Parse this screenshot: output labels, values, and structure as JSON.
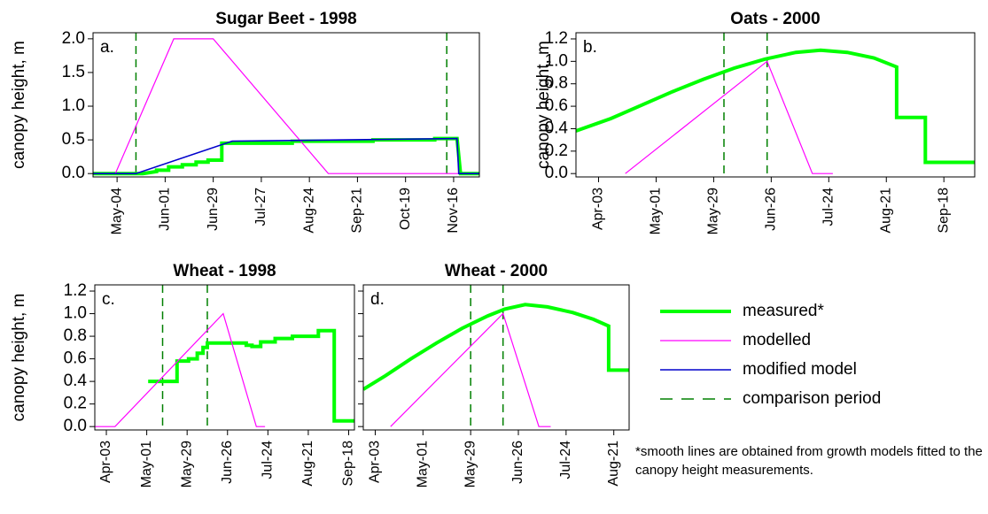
{
  "chart_data": [
    {
      "type": "line",
      "title": "Sugar Beet - 1998",
      "panel_label": "a.",
      "ylabel": "canopy height, m",
      "xlim": [
        110,
        335
      ],
      "ylim": [
        -0.05,
        2.09
      ],
      "xticks": [
        {
          "value": 124,
          "label": "May-04"
        },
        {
          "value": 152,
          "label": "Jun-01"
        },
        {
          "value": 180,
          "label": "Jun-29"
        },
        {
          "value": 208,
          "label": "Jul-27"
        },
        {
          "value": 236,
          "label": "Aug-24"
        },
        {
          "value": 264,
          "label": "Sep-21"
        },
        {
          "value": 292,
          "label": "Oct-19"
        },
        {
          "value": 320,
          "label": "Nov-16"
        }
      ],
      "yticks": [
        {
          "value": 0,
          "label": "0.0"
        },
        0.5,
        {
          "value": 1,
          "label": "1.0"
        },
        1.5,
        {
          "value": 2,
          "label": "2.0"
        }
      ],
      "ytick_labels": true,
      "series": [
        {
          "name": "measured*",
          "color": "#00ff00",
          "linewidth": 4,
          "x": [
            110,
            139,
            147,
            147,
            154,
            154,
            162,
            162,
            170,
            170,
            177,
            177,
            185,
            185,
            226,
            226,
            273,
            273,
            309,
            309,
            322,
            324,
            335
          ],
          "values": [
            0,
            0,
            0.03,
            0.05,
            0.05,
            0.1,
            0.1,
            0.13,
            0.13,
            0.17,
            0.17,
            0.2,
            0.2,
            0.45,
            0.45,
            0.48,
            0.48,
            0.5,
            0.5,
            0.52,
            0.52,
            0,
            0
          ]
        },
        {
          "name": "modelled",
          "color": "#ff00ff",
          "linewidth": 1.2,
          "x": [
            110,
            123,
            157,
            180,
            247,
            335
          ],
          "values": [
            0,
            0,
            2.0,
            2.0,
            0,
            0
          ]
        },
        {
          "name": "modified model",
          "color": "#0000cc",
          "linewidth": 1.6,
          "x": [
            110,
            135,
            191,
            322,
            323,
            335
          ],
          "values": [
            0,
            0,
            0.48,
            0.52,
            0,
            0
          ]
        }
      ],
      "comparison": {
        "name": "comparison period",
        "color": "#008000",
        "x": [
          135,
          316
        ]
      }
    },
    {
      "type": "line",
      "title": "Oats - 2000",
      "panel_label": "b.",
      "ylabel": "canopy height, m",
      "xlim": [
        83,
        277
      ],
      "ylim": [
        -0.03,
        1.255
      ],
      "xticks": [
        {
          "value": 94,
          "label": "Apr-03"
        },
        {
          "value": 122,
          "label": "May-01"
        },
        {
          "value": 150,
          "label": "May-29"
        },
        {
          "value": 178,
          "label": "Jun-26"
        },
        {
          "value": 206,
          "label": "Jul-24"
        },
        {
          "value": 234,
          "label": "Aug-21"
        },
        {
          "value": 262,
          "label": "Sep-18"
        }
      ],
      "yticks": [
        {
          "value": 0,
          "label": "0.0"
        },
        0.2,
        0.4,
        0.6,
        0.8,
        {
          "value": 1,
          "label": "1.0"
        },
        1.2
      ],
      "ytick_labels": true,
      "series": [
        {
          "color": "#00ff00",
          "linewidth": 4,
          "x": [
            83,
            100,
            115,
            130,
            145,
            160,
            175,
            190,
            202,
            215,
            228,
            239,
            239,
            253,
            253,
            277
          ],
          "values": [
            0.38,
            0.49,
            0.61,
            0.73,
            0.84,
            0.94,
            1.02,
            1.08,
            1.1,
            1.08,
            1.03,
            0.95,
            0.5,
            0.5,
            0.1,
            0.1
          ]
        },
        {
          "color": "#ff00ff",
          "linewidth": 1.2,
          "x": [
            107,
            176,
            198,
            208
          ],
          "values": [
            0,
            1.0,
            0,
            0
          ]
        }
      ],
      "comparison": {
        "color": "#008000",
        "x": [
          155,
          176
        ]
      }
    },
    {
      "type": "line",
      "title": "Wheat - 1998",
      "panel_label": "c.",
      "ylabel": "canopy height, m",
      "xlim": [
        85,
        265
      ],
      "ylim": [
        -0.03,
        1.255
      ],
      "xticks": [
        {
          "value": 93,
          "label": "Apr-03"
        },
        {
          "value": 121,
          "label": "May-01"
        },
        {
          "value": 149,
          "label": "May-29"
        },
        {
          "value": 177,
          "label": "Jun-26"
        },
        {
          "value": 205,
          "label": "Jul-24"
        },
        {
          "value": 233,
          "label": "Aug-21"
        },
        {
          "value": 261,
          "label": "Sep-18"
        }
      ],
      "yticks": [
        {
          "value": 0,
          "label": "0.0"
        },
        0.2,
        0.4,
        0.6,
        0.8,
        {
          "value": 1,
          "label": "1.0"
        },
        1.2
      ],
      "ytick_labels": true,
      "series": [
        {
          "color": "#00ff00",
          "linewidth": 4,
          "x": [
            122,
            142,
            142,
            150,
            150,
            156,
            156,
            160,
            160,
            163,
            163,
            190,
            190,
            194,
            194,
            200,
            200,
            210,
            210,
            222,
            222,
            240,
            240,
            251,
            251,
            265
          ],
          "values": [
            0.4,
            0.4,
            0.58,
            0.58,
            0.6,
            0.6,
            0.65,
            0.65,
            0.7,
            0.7,
            0.74,
            0.74,
            0.72,
            0.72,
            0.71,
            0.71,
            0.75,
            0.75,
            0.78,
            0.78,
            0.8,
            0.8,
            0.85,
            0.85,
            0.05,
            0.05
          ]
        },
        {
          "color": "#ff00ff",
          "linewidth": 1.2,
          "x": [
            85,
            99,
            174,
            197,
            203
          ],
          "values": [
            0,
            0,
            1.0,
            0,
            0
          ]
        }
      ],
      "comparison": {
        "color": "#008000",
        "x": [
          132,
          163
        ]
      }
    },
    {
      "type": "line",
      "title": "Wheat - 2000",
      "panel_label": "d.",
      "xlim": [
        87,
        243
      ],
      "ylim": [
        -0.03,
        1.255
      ],
      "xticks": [
        {
          "value": 94,
          "label": "Apr-03"
        },
        {
          "value": 122,
          "label": "May-01"
        },
        {
          "value": 150,
          "label": "May-29"
        },
        {
          "value": 178,
          "label": "Jun-26"
        },
        {
          "value": 206,
          "label": "Jul-24"
        },
        {
          "value": 234,
          "label": "Aug-21"
        }
      ],
      "yticks": [
        0,
        0.2,
        0.4,
        0.6,
        0.8,
        1,
        1.2
      ],
      "ytick_labels": false,
      "series": [
        {
          "color": "#00ff00",
          "linewidth": 4,
          "x": [
            87,
            100,
            115,
            130,
            145,
            160,
            170,
            182,
            195,
            210,
            222,
            231,
            231,
            243
          ],
          "values": [
            0.33,
            0.45,
            0.6,
            0.74,
            0.87,
            0.98,
            1.04,
            1.08,
            1.06,
            1.01,
            0.95,
            0.89,
            0.5,
            0.5
          ]
        },
        {
          "color": "#ff00ff",
          "linewidth": 1.2,
          "x": [
            103,
            169,
            190,
            197
          ],
          "values": [
            0,
            1.0,
            0,
            0
          ]
        }
      ],
      "comparison": {
        "color": "#008000",
        "x": [
          150,
          169
        ]
      }
    }
  ],
  "note": "*smooth lines are obtained from growth models fitted to the canopy height measurements."
}
